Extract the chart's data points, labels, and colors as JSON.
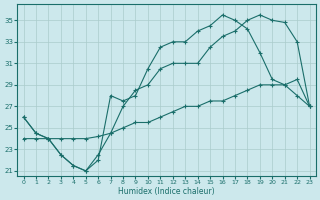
{
  "xlabel": "Humidex (Indice chaleur)",
  "xlim": [
    -0.5,
    23.5
  ],
  "ylim": [
    20.5,
    36.5
  ],
  "xticks": [
    0,
    1,
    2,
    3,
    4,
    5,
    6,
    7,
    8,
    9,
    10,
    11,
    12,
    13,
    14,
    15,
    16,
    17,
    18,
    19,
    20,
    21,
    22,
    23
  ],
  "yticks": [
    21,
    23,
    25,
    27,
    29,
    31,
    33,
    35
  ],
  "bg_color": "#cce8ec",
  "line_color": "#1a6e6a",
  "grid_color": "#aacccc",
  "line_top": [
    26,
    24.5,
    24,
    22.5,
    21.5,
    21,
    22,
    28,
    27.5,
    28,
    30.5,
    32.5,
    33,
    33,
    34,
    34.5,
    35.5,
    35,
    34.2,
    32,
    29.5,
    29,
    28,
    27
  ],
  "line_mid": [
    26,
    24.5,
    24,
    22.5,
    21.5,
    21,
    22.5,
    24.5,
    27,
    28.5,
    29,
    30.5,
    31,
    31,
    31,
    32.5,
    33.5,
    34,
    35,
    35.5,
    35,
    34.8,
    33,
    27
  ],
  "line_bot": [
    24,
    24,
    24,
    24,
    24,
    24,
    24.2,
    24.5,
    25,
    25.5,
    25.5,
    26,
    26.5,
    27,
    27,
    27.5,
    27.5,
    28,
    28.5,
    29,
    29,
    29,
    29.5,
    27
  ]
}
